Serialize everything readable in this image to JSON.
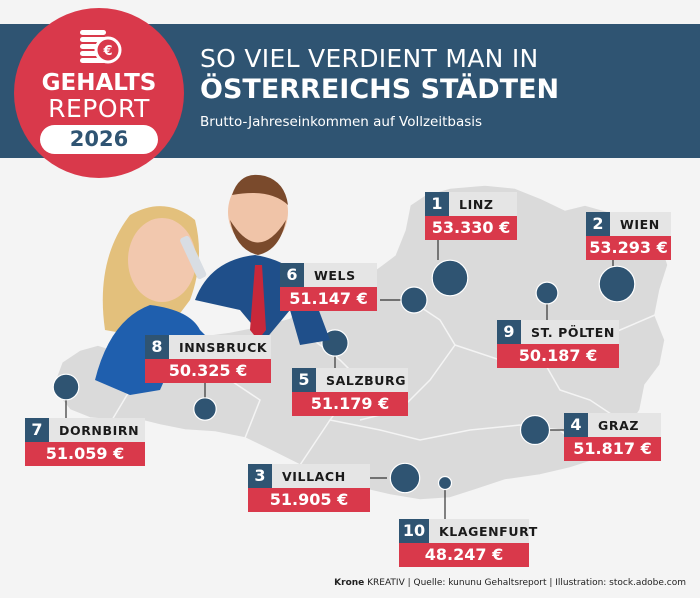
{
  "header": {
    "title_line1": "SO VIEL VERDIENT MAN IN",
    "title_line2": "ÖSTERREICHS STÄDTEN",
    "subtitle": "Brutto-Jahreseinkommen auf Vollzeitbasis"
  },
  "badge": {
    "line1": "GEHALTS",
    "line2": "REPORT",
    "year": "2026",
    "icon": "coins-euro-icon"
  },
  "colors": {
    "navy": "#2f5472",
    "red": "#d9394b",
    "map_gray": "#dadada",
    "background": "#f4f4f4"
  },
  "chart_data": {
    "type": "map",
    "title": "So viel verdient man in Österreichs Städten",
    "subtitle": "Brutto-Jahreseinkommen auf Vollzeitbasis",
    "unit": "€",
    "cities": [
      {
        "rank": "1",
        "name": "LINZ",
        "value": 53330,
        "label": "53.330 €"
      },
      {
        "rank": "2",
        "name": "WIEN",
        "value": 53293,
        "label": "53.293 €"
      },
      {
        "rank": "3",
        "name": "VILLACH",
        "value": 51905,
        "label": "51.905 €"
      },
      {
        "rank": "4",
        "name": "GRAZ",
        "value": 51817,
        "label": "51.817 €"
      },
      {
        "rank": "5",
        "name": "SALZBURG",
        "value": 51179,
        "label": "51.179 €"
      },
      {
        "rank": "6",
        "name": "WELS",
        "value": 51147,
        "label": "51.147 €"
      },
      {
        "rank": "7",
        "name": "DORNBIRN",
        "value": 51059,
        "label": "51.059 €"
      },
      {
        "rank": "8",
        "name": "INNSBRUCK",
        "value": 50325,
        "label": "50.325 €"
      },
      {
        "rank": "9",
        "name": "ST. PÖLTEN",
        "value": 50187,
        "label": "50.187 €"
      },
      {
        "rank": "10",
        "name": "KLAGENFURT",
        "value": 48247,
        "label": "48.247 €"
      }
    ]
  },
  "footer": {
    "brand": "Krone",
    "text": " KREATIV | Quelle: kununu Gehaltsreport | Illustration: stock.adobe.com"
  }
}
